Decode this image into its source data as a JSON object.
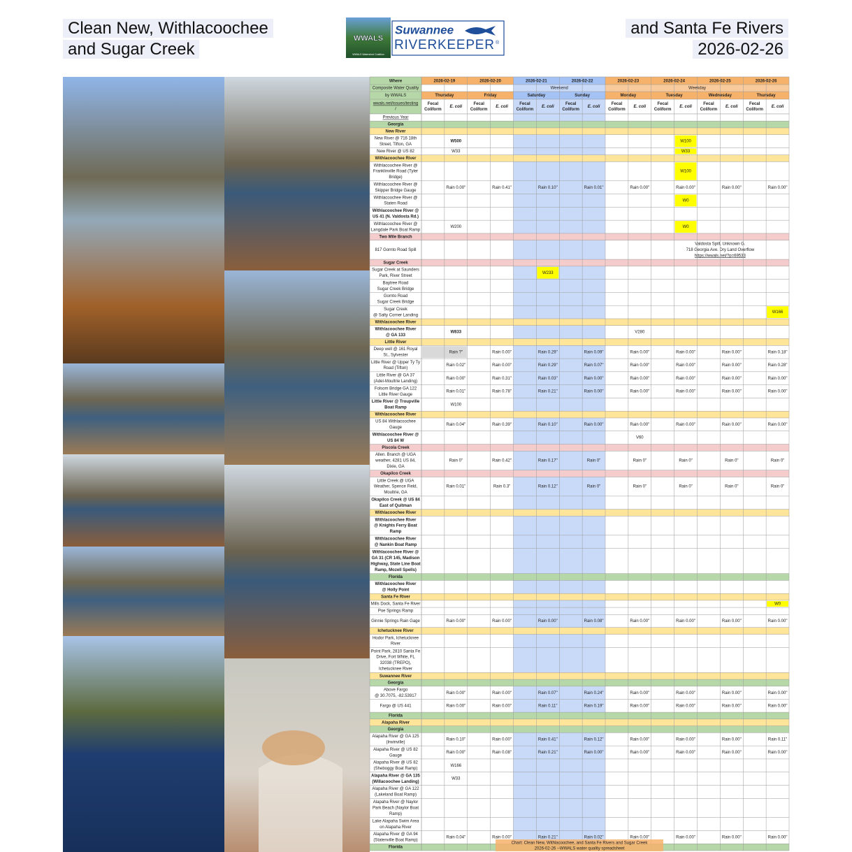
{
  "header": {
    "title_left": [
      "Clean New, Withlacoochee",
      "and Sugar Creek"
    ],
    "title_right": [
      "and Santa Fe Rivers",
      "2026-02-26"
    ],
    "logo": {
      "badge": "WWALS",
      "name": "Suwannee",
      "role": "RIVERKEEPER",
      "mark": "®",
      "footer": "WWALS Watershed Coalition"
    }
  },
  "table": {
    "where": "Where",
    "heading": [
      "Composite Water Quality",
      "by WWALS"
    ],
    "link": [
      "wwals.net/issues/testing",
      "/"
    ],
    "fecal": [
      "Fecal",
      "Coliform"
    ],
    "ecoli": "E. coli",
    "days": [
      {
        "date": "2026-02-19",
        "day": "Thursday",
        "weekend": false
      },
      {
        "date": "2026-02-20",
        "day": "Friday",
        "weekend": false
      },
      {
        "date": "2026-02-21",
        "day": "Saturday",
        "weekend": true
      },
      {
        "date": "2026-02-22",
        "day": "Sunday",
        "weekend": true
      },
      {
        "date": "2026-02-23",
        "day": "Monday",
        "weekend": false
      },
      {
        "date": "2026-02-24",
        "day": "Tuesday",
        "weekend": false
      },
      {
        "date": "2026-02-25",
        "day": "Wednesday",
        "weekend": false
      },
      {
        "date": "2026-02-26",
        "day": "Thursday",
        "weekend": false
      }
    ],
    "periods": [
      {
        "label": "Weekend",
        "from": 2,
        "to": 3
      },
      {
        "label": "Weekday",
        "from": 4,
        "to": 7
      }
    ],
    "rows": [
      {
        "where": [
          "Previous Year"
        ],
        "link": true
      },
      {
        "section": "Georgia",
        "kind": "state"
      },
      {
        "section": "New River",
        "kind": "river"
      },
      {
        "where": [
          "New River @ 716 18th",
          "Street, Tifton, GA"
        ],
        "samples": {
          "1": {
            "text": "W500",
            "style": "red"
          },
          "11": {
            "text": "W100",
            "style": "yellow"
          }
        }
      },
      {
        "where": [
          "New River @ US 82"
        ],
        "samples": {
          "1": {
            "text": "W33",
            "style": "green"
          },
          "11": {
            "text": "W33",
            "style": "yellow"
          }
        }
      },
      {
        "section": "Withlacoochee River",
        "kind": "river"
      },
      {
        "where": [
          "Withlacoochee River @",
          "Franklinville Road (Tyler",
          "Bridge)"
        ],
        "samples": {
          "11": {
            "text": "W100",
            "style": "yellow"
          }
        }
      },
      {
        "where": [
          "Withlacoochee River @",
          "Skipper Bridge Gauge"
        ],
        "rain": [
          "Rain 0.00\"",
          "Rain 0.41\"",
          "Rain 0.10\"",
          "Rain 0.01\"",
          "Rain 0.00\"",
          "Rain 0.00\"",
          "Rain 0.00\"",
          "Rain 0.00\""
        ]
      },
      {
        "where": [
          "Withlacoochee River @",
          "Staten Road"
        ],
        "samples": {
          "11": {
            "text": "W0",
            "style": "yellow"
          }
        }
      },
      {
        "where": [
          "Withlacoochee River @",
          "US 41 (N. Valdosta Rd.)"
        ],
        "bold": true
      },
      {
        "where": [
          "Withlacoochee River @",
          "Langdale Park Boat Ramp"
        ],
        "samples": {
          "1": {
            "text": "W200",
            "style": "orange"
          },
          "11": {
            "text": "W0",
            "style": "yellow"
          }
        }
      },
      {
        "section": "Two Mile Branch",
        "kind": "creek"
      },
      {
        "where": [
          "817 Gornto Road Spill"
        ],
        "note": [
          "Valdosta Spill, Unknown G.",
          "718 Georgia Ave. Dry Land Overflow",
          "https://wwals.net/?p=69533"
        ]
      },
      {
        "section": "Sugar Creek",
        "kind": "creek"
      },
      {
        "where": [
          "Sugar Creek at Saunders",
          "Park, River Street"
        ],
        "samples": {
          "5": {
            "text": "W233",
            "style": "yellow"
          }
        }
      },
      {
        "where": [
          "Baytree Road",
          "Sugar Creek Bridge"
        ]
      },
      {
        "where": [
          "Gornto Road",
          "Sugar Creek Bridge"
        ]
      },
      {
        "where": [
          "Sugar Creek",
          "@ Salty Corner Landing"
        ],
        "samples": {
          "15": {
            "text": "W166",
            "style": "yellow"
          }
        }
      },
      {
        "section": "Withlacoochee River",
        "kind": "river"
      },
      {
        "where": [
          "Withlacoochee River",
          "@ GA 133"
        ],
        "bold": true,
        "samples": {
          "1": {
            "text": "W833",
            "style": "red"
          },
          "9": {
            "text": "V280",
            "style": "orange"
          }
        }
      },
      {
        "section": "Little River",
        "kind": "river"
      },
      {
        "where": [
          "Deep well @ 161 Royal",
          "St., Sylvester"
        ],
        "rain": [
          {
            "text": "Rain ?\"",
            "style": "gray"
          },
          "Rain 0.00\"",
          "Rain 0.29\"",
          "Rain 0.09\"",
          "Rain 0.00\"",
          "Rain 0.00\"",
          "Rain 0.00\"",
          "Rain 0.18\""
        ]
      },
      {
        "where": [
          "Little River @ Upper Ty Ty",
          "Road (Tifton)"
        ],
        "rain": [
          "Rain 0.02\"",
          "Rain 0.00\"",
          "Rain 0.29\"",
          "Rain 0.07\"",
          "Rain 0.00\"",
          "Rain 0.00\"",
          "Rain 0.00\"",
          "Rain 0.28\""
        ]
      },
      {
        "where": [
          "Little River @ GA 37",
          "(Adel-Moultrie Landing)"
        ],
        "rain": [
          "Rain 0.00\"",
          "Rain 0.31\"",
          "Rain 0.03\"",
          "Rain 0.00\"",
          "Rain 0.00\"",
          "Rain 0.00\"",
          "Rain 0.00\"",
          "Rain 0.00\""
        ]
      },
      {
        "where": [
          "Folsom Bridge GA 122",
          "Little River Gauge"
        ],
        "rain": [
          "Rain 0.01\"",
          {
            "text": "Rain 0.78\"",
            "style": "red"
          },
          "Rain 0.21\"",
          "Rain 0.00\"",
          "Rain 0.00\"",
          "Rain 0.00\"",
          "Rain 0.00\"",
          "Rain 0.00\""
        ]
      },
      {
        "where": [
          "Little River @ Troupville",
          "Boat Ramp"
        ],
        "bold": true,
        "samples": {
          "1": {
            "text": "W100",
            "style": "green"
          }
        }
      },
      {
        "section": "Withlacoochee River",
        "kind": "river"
      },
      {
        "where": [
          "US 84 Withlacoochee",
          "Gauge"
        ],
        "rain": [
          "Rain 0.04\"",
          "Rain 0.39\"",
          "Rain 0.10\"",
          "Rain 0.00\"",
          "Rain 0.00\"",
          "Rain 0.00\"",
          "Rain 0.00\"",
          "Rain 0.00\""
        ]
      },
      {
        "where": [
          "Withlacoochee River @",
          "US 84 W"
        ],
        "bold": true,
        "samples": {
          "9": {
            "text": "V60",
            "style": "green"
          }
        }
      },
      {
        "section": "Piscola Creek",
        "kind": "creek"
      },
      {
        "where": [
          "Allen. Branch @ UGA",
          "weather, 4281 US 84,",
          "Dixie, GA"
        ],
        "rain": [
          "Rain 0\"",
          "Rain 0.42\"",
          "Rain 0.17\"",
          "Rain 0\"",
          "Rain 0\"",
          "Rain 0\"",
          "Rain 0\"",
          "Rain 0\""
        ]
      },
      {
        "section": "Okapilco Creek",
        "kind": "creek"
      },
      {
        "where": [
          "Little Creek @ UGA",
          "Weather, Spence Field,",
          "Moultrie, GA"
        ],
        "rain": [
          "Rain 0.01\"",
          "Rain 0.3\"",
          "Rain 0.12\"",
          "Rain 0\"",
          "Rain 0\"",
          "Rain 0\"",
          "Rain 0\"",
          "Rain 0\""
        ]
      },
      {
        "where": [
          "Okapilco Creek @ US 84",
          "East of Quitman"
        ],
        "bold": true
      },
      {
        "section": "Withlacoochee River",
        "kind": "river"
      },
      {
        "where": [
          "Withlacoochee River",
          "@ Knights Ferry Boat",
          "Ramp"
        ],
        "bold": true
      },
      {
        "where": [
          "Withlacoochee River",
          "@ Nankin Boat Ramp"
        ],
        "bold": true
      },
      {
        "where": [
          "Withlacoochee River @",
          "GA 31 (CR 145, Madison",
          "Highway, State Line Boat",
          "Ramp, Mozell Spells)"
        ],
        "bold": true
      },
      {
        "section": "Florida",
        "kind": "state"
      },
      {
        "where": [
          "Withlacoochee River",
          "@ Holly Point"
        ],
        "bold": true
      },
      {
        "section": "Santa Fe River",
        "kind": "river"
      },
      {
        "where": [
          "Mills Dock, Santa Fe River"
        ],
        "samples": {
          "15": {
            "text": "W0",
            "style": "yellow"
          }
        }
      },
      {
        "where": [
          "Poe Springs Ramp"
        ]
      },
      {
        "where": [
          "Ginnie Springs Rain Gage"
        ],
        "rain": [
          "Rain 0.00\"",
          "Rain 0.00\"",
          "Rain 0.00\"",
          "Rain 0.08\"",
          "Rain 0.00\"",
          "Rain 0.00\"",
          "Rain 0.00\"",
          "Rain 0.00\""
        ]
      },
      {
        "section": "Ichetucknee River",
        "kind": "river"
      },
      {
        "where": [
          "Hodor Park, Ichetucknee",
          "River"
        ]
      },
      {
        "where": [
          "Point Park, 2810 Santa Fe",
          "Drive, Fort White, FL",
          "32038 (TREPO),",
          "Ichetucknee River"
        ]
      },
      {
        "section": "Suwannee River",
        "kind": "river"
      },
      {
        "section": "Georgia",
        "kind": "state"
      },
      {
        "where": [
          "Above Fargo",
          "@ 30.7075, -82.53917"
        ],
        "rain": [
          "Rain 0.00\"",
          "Rain 0.00\"",
          "Rain 0.07\"",
          "Rain 0.24\"",
          "Rain 0.00\"",
          "Rain 0.00\"",
          "Rain 0.00\"",
          "Rain 0.00\""
        ]
      },
      {
        "where": [
          "Fargo @ US 441"
        ],
        "rain": [
          "Rain 0.00\"",
          "Rain 0.00\"",
          "Rain 0.11\"",
          "Rain 0.19\"",
          "Rain 0.00\"",
          "Rain 0.00\"",
          "Rain 0.00\"",
          "Rain 0.00\""
        ]
      },
      {
        "section": "Florida",
        "kind": "state"
      },
      {
        "section": "Alapaha River",
        "kind": "river"
      },
      {
        "section": "Georgia",
        "kind": "state"
      },
      {
        "where": [
          "Alapaha River @ GA 125",
          "(Irwinville)"
        ],
        "rain": [
          "Rain 0.10\"",
          "Rain 0.00\"",
          "Rain 0.41\"",
          "Rain 0.12\"",
          "Rain 0.00\"",
          "Rain 0.00\"",
          "Rain 0.00\"",
          "Rain 0.11\""
        ]
      },
      {
        "where": [
          "Alapaha River @ US 82",
          "Gauge"
        ],
        "rain": [
          "Rain 0.00\"",
          "Rain 0.08\"",
          "Rain 0.21\"",
          "Rain 0.00\"",
          "Rain 0.00\"",
          "Rain 0.00\"",
          "Rain 0.00\"",
          "Rain 0.00\""
        ]
      },
      {
        "where": [
          "Alapaha River @ US 82",
          "(Sheboggy Boat Ramp)"
        ],
        "samples": {
          "1": {
            "text": "W166",
            "style": "orange"
          }
        }
      },
      {
        "where": [
          "Alapaha River @ GA 135",
          "(Willacoochee Landing)"
        ],
        "bold": true,
        "samples": {
          "1": {
            "text": "W33",
            "style": "green"
          }
        }
      },
      {
        "where": [
          "Alapaha River @ GA 122",
          "(Lakeland Boat Ramp)"
        ]
      },
      {
        "where": [
          "Alapaha River @ Naylor",
          "Park Beach (Naylor Boat",
          "Ramp)"
        ]
      },
      {
        "where": [
          "Lake Alapaha Swim Area",
          "on Alapaha River"
        ]
      },
      {
        "where": [
          "Alapaha River @ GA 94",
          "(Statenville Boat Ramp)"
        ],
        "rain": [
          "Rain 0.04\"",
          "Rain 0.00\"",
          "Rain 0.21\"",
          "Rain 0.02\"",
          "Rain 0.00\"",
          "Rain 0.00\"",
          "Rain 0.00\"",
          "Rain 0.00\""
        ]
      },
      {
        "section": "Florida",
        "kind": "state"
      }
    ],
    "caption": [
      "Chart: Clean New, Withlacoochee, and Santa Fe Rivers and Sugar Creek",
      "2026-02-26 --WWALS water quality spreadsheet"
    ]
  }
}
